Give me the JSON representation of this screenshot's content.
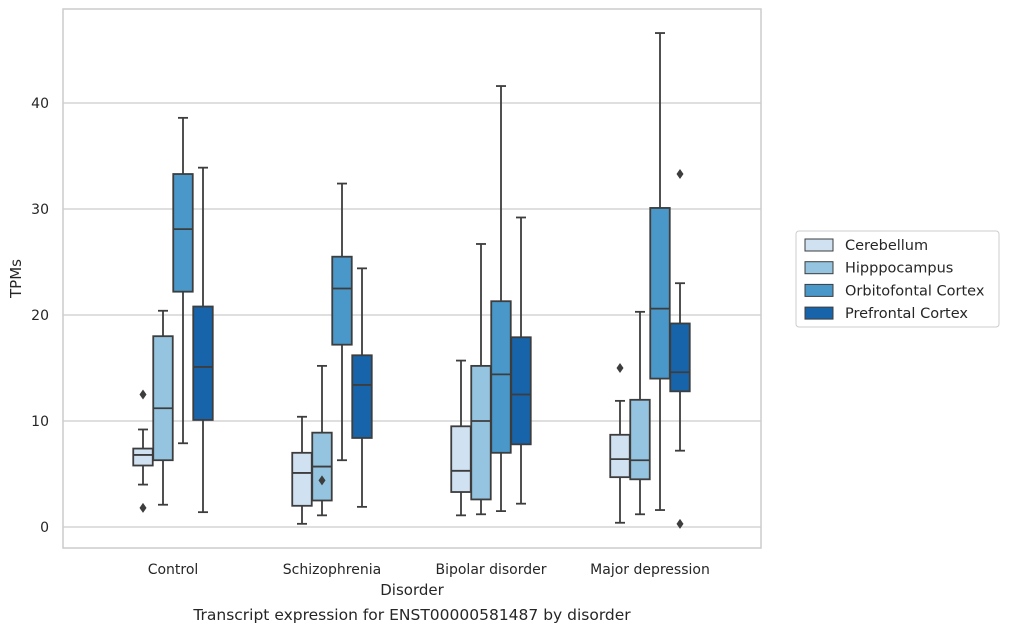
{
  "chart_data": {
    "type": "box",
    "caption": "Transcript expression for ENST00000581487 by disorder",
    "xlabel": "Disorder",
    "ylabel": "TPMs",
    "ylim": [
      -2,
      48
    ],
    "yticks": [
      0,
      10,
      20,
      30,
      40
    ],
    "grid": "horizontal",
    "legend_position": "right",
    "categories": [
      "Control",
      "Schizophrenia",
      "Bipolar disorder",
      "Major depression"
    ],
    "series": [
      {
        "name": "Cerebellum",
        "color": "#d0e1f2",
        "boxes": [
          {
            "q1": 5.8,
            "median": 6.8,
            "q3": 7.4,
            "whisker_low": 4.0,
            "whisker_high": 9.2,
            "outliers": [
              12.5,
              1.8
            ]
          },
          {
            "q1": 2.0,
            "median": 5.1,
            "q3": 7.0,
            "whisker_low": 0.3,
            "whisker_high": 10.4,
            "outliers": []
          },
          {
            "q1": 3.3,
            "median": 5.3,
            "q3": 9.5,
            "whisker_low": 1.1,
            "whisker_high": 15.7,
            "outliers": []
          },
          {
            "q1": 4.7,
            "median": 6.4,
            "q3": 8.7,
            "whisker_low": 0.4,
            "whisker_high": 11.9,
            "outliers": [
              15.0
            ]
          }
        ]
      },
      {
        "name": "Hipppocampus",
        "color": "#94c4df",
        "boxes": [
          {
            "q1": 6.3,
            "median": 11.2,
            "q3": 18.0,
            "whisker_low": 2.1,
            "whisker_high": 20.4,
            "outliers": []
          },
          {
            "q1": 2.5,
            "median": 5.7,
            "q3": 8.9,
            "whisker_low": 1.1,
            "whisker_high": 15.2,
            "outliers": [
              4.4
            ]
          },
          {
            "q1": 2.6,
            "median": 10.0,
            "q3": 15.2,
            "whisker_low": 1.2,
            "whisker_high": 26.7,
            "outliers": []
          },
          {
            "q1": 4.5,
            "median": 6.3,
            "q3": 12.0,
            "whisker_low": 1.2,
            "whisker_high": 20.3,
            "outliers": []
          }
        ]
      },
      {
        "name": "Orbitofontal Cortex",
        "color": "#4a98c9",
        "boxes": [
          {
            "q1": 22.2,
            "median": 28.1,
            "q3": 33.3,
            "whisker_low": 7.9,
            "whisker_high": 38.6,
            "outliers": []
          },
          {
            "q1": 17.2,
            "median": 22.5,
            "q3": 25.5,
            "whisker_low": 6.3,
            "whisker_high": 32.4,
            "outliers": []
          },
          {
            "q1": 7.0,
            "median": 14.4,
            "q3": 21.3,
            "whisker_low": 1.5,
            "whisker_high": 41.6,
            "outliers": []
          },
          {
            "q1": 14.0,
            "median": 20.6,
            "q3": 30.1,
            "whisker_low": 1.6,
            "whisker_high": 46.6,
            "outliers": []
          }
        ]
      },
      {
        "name": "Prefrontal Cortex",
        "color": "#1764ab",
        "boxes": [
          {
            "q1": 10.1,
            "median": 15.1,
            "q3": 20.8,
            "whisker_low": 1.4,
            "whisker_high": 33.9,
            "outliers": []
          },
          {
            "q1": 8.4,
            "median": 13.4,
            "q3": 16.2,
            "whisker_low": 1.9,
            "whisker_high": 24.4,
            "outliers": []
          },
          {
            "q1": 7.8,
            "median": 12.5,
            "q3": 17.9,
            "whisker_low": 2.2,
            "whisker_high": 29.2,
            "outliers": []
          },
          {
            "q1": 12.8,
            "median": 14.6,
            "q3": 19.2,
            "whisker_low": 7.2,
            "whisker_high": 23.0,
            "outliers": [
              0.3,
              33.3
            ]
          }
        ]
      }
    ]
  }
}
